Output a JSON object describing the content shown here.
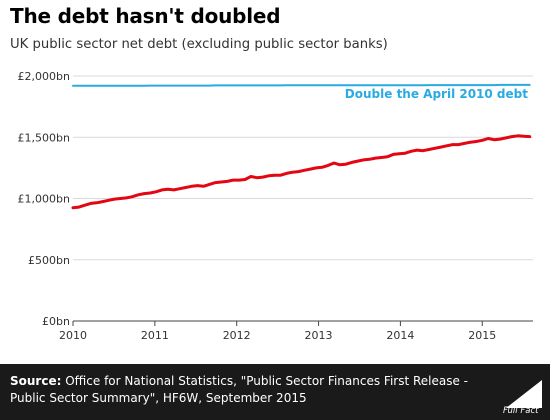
{
  "title": "The debt hasn't doubled",
  "subtitle": "UK public sector net debt (excluding public sector banks)",
  "source": {
    "label": "Source:",
    "text": "Office for National Statistics, \"Public Sector Finances First Release - Public Sector Summary\", HF6W, September 2015"
  },
  "brand": {
    "name": "Full Fact"
  },
  "colors": {
    "debt": "#e30613",
    "double": "#29abe2",
    "footer": "#1a1a1a"
  },
  "chart_data": {
    "type": "line",
    "x_start": 2010,
    "x_end": 2015.58,
    "xlim": [
      2010,
      2015.62
    ],
    "ylim": [
      0,
      2000
    ],
    "yticks": [
      0,
      500,
      1000,
      1500,
      2000
    ],
    "ytick_labels": [
      "£0bn",
      "£500bn",
      "£1,000bn",
      "£1,500bn",
      "£2,000bn"
    ],
    "xticks": [
      2010,
      2011,
      2012,
      2013,
      2014,
      2015
    ],
    "xtick_labels": [
      "2010",
      "2011",
      "2012",
      "2013",
      "2014",
      "2015"
    ],
    "grid": true,
    "series": [
      {
        "color": "#e30613",
        "values": [
          925,
          930,
          945,
          960,
          965,
          975,
          985,
          995,
          1000,
          1005,
          1015,
          1030,
          1040,
          1045,
          1055,
          1070,
          1075,
          1070,
          1080,
          1090,
          1100,
          1105,
          1100,
          1115,
          1130,
          1135,
          1140,
          1150,
          1150,
          1155,
          1180,
          1170,
          1175,
          1185,
          1190,
          1190,
          1205,
          1215,
          1220,
          1230,
          1240,
          1250,
          1255,
          1270,
          1290,
          1275,
          1280,
          1295,
          1305,
          1315,
          1320,
          1330,
          1335,
          1340,
          1360,
          1365,
          1370,
          1385,
          1395,
          1390,
          1400,
          1410,
          1420,
          1430,
          1440,
          1440,
          1450,
          1460,
          1465,
          1475,
          1490,
          1480,
          1485,
          1495,
          1505,
          1512,
          1508,
          1505
        ]
      },
      {
        "name": "Double the April 2010 debt",
        "color": "#29abe2",
        "values": [
          1920,
          1920,
          1920,
          1920,
          1920,
          1920,
          1921,
          1921,
          1921,
          1921,
          1921,
          1921,
          1921,
          1922,
          1922,
          1922,
          1922,
          1922,
          1922,
          1922,
          1922,
          1922,
          1922,
          1922,
          1923,
          1923,
          1923,
          1923,
          1923,
          1923,
          1923,
          1923,
          1923,
          1923,
          1923,
          1923,
          1924,
          1924,
          1924,
          1924,
          1924,
          1924,
          1924,
          1924,
          1924,
          1924,
          1924,
          1924,
          1925,
          1925,
          1925,
          1925,
          1925,
          1925,
          1925,
          1925,
          1925,
          1925,
          1925,
          1925,
          1926,
          1926,
          1926,
          1926,
          1926,
          1926,
          1926,
          1926,
          1926,
          1926,
          1926,
          1926,
          1927,
          1927,
          1927,
          1927,
          1927,
          1927
        ]
      }
    ]
  }
}
